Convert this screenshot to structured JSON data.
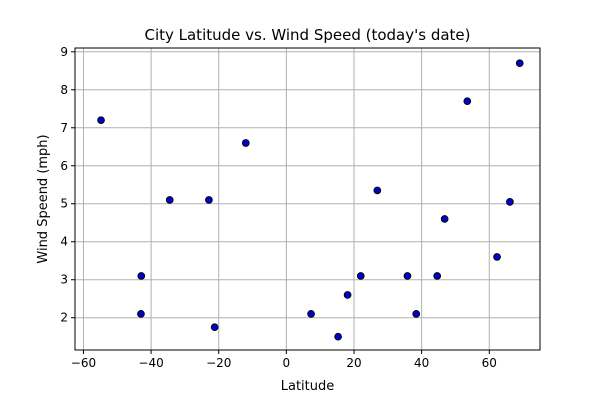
{
  "chart_data": {
    "type": "scatter",
    "title": "City Latitude vs. Wind Speed (today's date)",
    "xlabel": "Latitude",
    "ylabel": "Wind Speend (mph)",
    "xlim": [
      -62.5,
      75
    ],
    "ylim": [
      1.15,
      9.1
    ],
    "xticks": [
      -60,
      -40,
      -20,
      0,
      20,
      40,
      60
    ],
    "yticks": [
      2,
      3,
      4,
      5,
      6,
      7,
      8,
      9
    ],
    "xtick_labels": [
      "−60",
      "−40",
      "−20",
      "0",
      "20",
      "40",
      "60"
    ],
    "ytick_labels": [
      "2",
      "3",
      "4",
      "5",
      "6",
      "7",
      "8",
      "9"
    ],
    "grid": true,
    "marker_fill": "#0000cd",
    "marker_edge": "#000000",
    "grid_color": "#b0b0b0",
    "points": [
      {
        "x": -54.8,
        "y": 7.2
      },
      {
        "x": -42.9,
        "y": 3.1
      },
      {
        "x": -43.0,
        "y": 2.1
      },
      {
        "x": -34.5,
        "y": 5.1
      },
      {
        "x": -22.9,
        "y": 5.1
      },
      {
        "x": -21.2,
        "y": 1.75
      },
      {
        "x": -12.0,
        "y": 6.6
      },
      {
        "x": 7.3,
        "y": 2.1
      },
      {
        "x": 15.3,
        "y": 1.5
      },
      {
        "x": 18.1,
        "y": 2.6
      },
      {
        "x": 22.0,
        "y": 3.1
      },
      {
        "x": 26.9,
        "y": 5.35
      },
      {
        "x": 35.8,
        "y": 3.1
      },
      {
        "x": 38.4,
        "y": 2.1
      },
      {
        "x": 44.6,
        "y": 3.1
      },
      {
        "x": 46.8,
        "y": 4.6
      },
      {
        "x": 53.5,
        "y": 7.7
      },
      {
        "x": 62.3,
        "y": 3.6
      },
      {
        "x": 66.1,
        "y": 5.05
      },
      {
        "x": 69.0,
        "y": 8.7
      }
    ]
  }
}
